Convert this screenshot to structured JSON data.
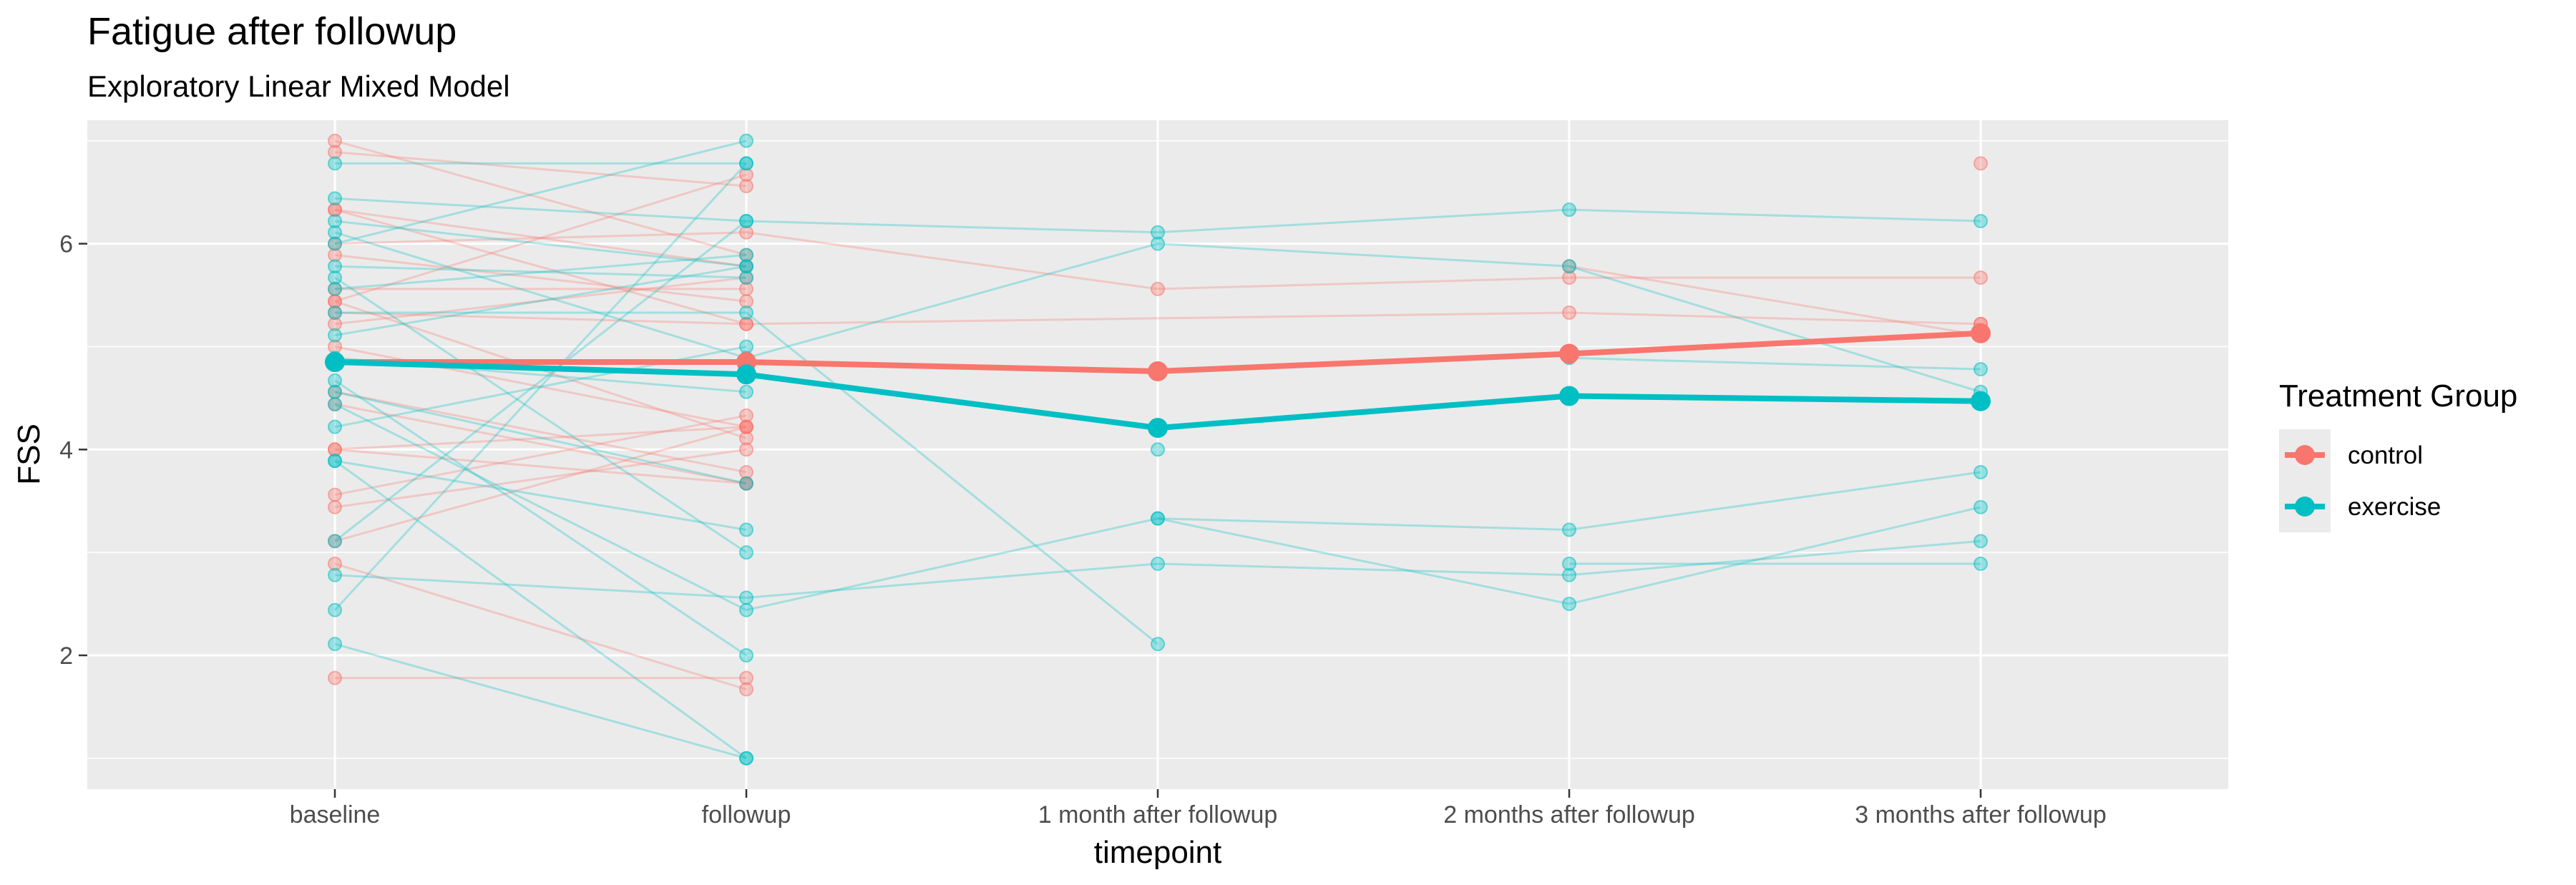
{
  "chart_data": {
    "type": "line",
    "title": "Fatigue after followup",
    "subtitle": "Exploratory Linear Mixed Model",
    "xlabel": "timepoint",
    "ylabel": "FSS",
    "categories": [
      "baseline",
      "followup",
      "1 month after followup",
      "2 months after followup",
      "3 months after followup"
    ],
    "ylim": [
      0.7,
      7.2
    ],
    "yticks": [
      2,
      4,
      6
    ],
    "grid": true,
    "legend": {
      "title": "Treatment Group",
      "position": "right",
      "entries": [
        "control",
        "exercise"
      ]
    },
    "colors": {
      "control": "#F8766D",
      "exercise": "#00BFC4"
    },
    "series": [
      {
        "name": "control",
        "values": [
          4.85,
          4.85,
          4.76,
          4.93,
          5.13
        ]
      },
      {
        "name": "exercise",
        "values": [
          4.85,
          4.73,
          4.21,
          4.52,
          4.47
        ]
      }
    ],
    "individual_trajectories": [
      {
        "group": "control",
        "values": [
          6.89,
          6.56,
          null,
          null,
          null
        ]
      },
      {
        "group": "control",
        "values": [
          6.33,
          5.78,
          null,
          null,
          null
        ]
      },
      {
        "group": "control",
        "values": [
          6.0,
          6.11,
          5.56,
          5.67,
          5.67
        ]
      },
      {
        "group": "control",
        "values": [
          5.89,
          5.44,
          null,
          null,
          null
        ]
      },
      {
        "group": "control",
        "values": [
          5.56,
          5.56,
          null,
          null,
          null
        ]
      },
      {
        "group": "control",
        "values": [
          5.44,
          6.67,
          null,
          null,
          null
        ]
      },
      {
        "group": "control",
        "values": [
          5.33,
          5.22,
          null,
          5.33,
          5.22
        ]
      },
      {
        "group": "control",
        "values": [
          5.22,
          5.67,
          null,
          null,
          null
        ]
      },
      {
        "group": "control",
        "values": [
          5.0,
          4.22,
          null,
          null,
          null
        ]
      },
      {
        "group": "control",
        "values": [
          4.56,
          3.78,
          null,
          null,
          null
        ]
      },
      {
        "group": "control",
        "values": [
          4.0,
          4.22,
          null,
          null,
          null
        ]
      },
      {
        "group": "control",
        "values": [
          4.0,
          3.67,
          null,
          null,
          null
        ]
      },
      {
        "group": "control",
        "values": [
          3.56,
          4.33,
          null,
          null,
          null
        ]
      },
      {
        "group": "control",
        "values": [
          3.44,
          4.0,
          null,
          null,
          null
        ]
      },
      {
        "group": "control",
        "values": [
          3.11,
          4.22,
          null,
          null,
          null
        ]
      },
      {
        "group": "control",
        "values": [
          2.89,
          1.67,
          null,
          null,
          null
        ]
      },
      {
        "group": "control",
        "values": [
          1.78,
          1.78,
          null,
          null,
          null
        ]
      },
      {
        "group": "control",
        "values": [
          null,
          null,
          null,
          null,
          6.78
        ]
      },
      {
        "group": "control",
        "values": [
          null,
          null,
          null,
          null,
          5.22
        ]
      },
      {
        "group": "control",
        "values": [
          null,
          null,
          null,
          5.78,
          5.11
        ]
      },
      {
        "group": "control",
        "values": [
          7.0,
          5.89,
          null,
          null,
          null
        ]
      },
      {
        "group": "control",
        "values": [
          6.33,
          5.22,
          null,
          null,
          null
        ]
      },
      {
        "group": "control",
        "values": [
          5.44,
          4.11,
          null,
          null,
          null
        ]
      },
      {
        "group": "control",
        "values": [
          4.44,
          3.67,
          null,
          null,
          null
        ]
      },
      {
        "group": "exercise",
        "values": [
          6.78,
          6.78,
          null,
          null,
          null
        ]
      },
      {
        "group": "exercise",
        "values": [
          6.44,
          6.22,
          6.11,
          6.33,
          6.22
        ]
      },
      {
        "group": "exercise",
        "values": [
          6.22,
          5.78,
          null,
          null,
          null
        ]
      },
      {
        "group": "exercise",
        "values": [
          6.11,
          4.89,
          6.0,
          5.78,
          4.56
        ]
      },
      {
        "group": "exercise",
        "values": [
          5.78,
          5.67,
          null,
          null,
          null
        ]
      },
      {
        "group": "exercise",
        "values": [
          5.67,
          3.0,
          null,
          null,
          null
        ]
      },
      {
        "group": "exercise",
        "values": [
          5.33,
          5.33,
          2.11,
          null,
          null
        ]
      },
      {
        "group": "exercise",
        "values": [
          5.11,
          5.78,
          null,
          null,
          null
        ]
      },
      {
        "group": "exercise",
        "values": [
          4.89,
          4.56,
          null,
          null,
          null
        ]
      },
      {
        "group": "exercise",
        "values": [
          4.67,
          2.0,
          null,
          null,
          null
        ]
      },
      {
        "group": "exercise",
        "values": [
          4.44,
          2.44,
          3.33,
          3.22,
          3.78
        ]
      },
      {
        "group": "exercise",
        "values": [
          4.22,
          5.0,
          null,
          null,
          null
        ]
      },
      {
        "group": "exercise",
        "values": [
          3.89,
          3.22,
          null,
          null,
          null
        ]
      },
      {
        "group": "exercise",
        "values": [
          3.89,
          1.0,
          null,
          null,
          null
        ]
      },
      {
        "group": "exercise",
        "values": [
          3.11,
          6.22,
          null,
          null,
          null
        ]
      },
      {
        "group": "exercise",
        "values": [
          2.78,
          2.56,
          2.89,
          2.78,
          3.11
        ]
      },
      {
        "group": "exercise",
        "values": [
          2.44,
          6.78,
          null,
          null,
          null
        ]
      },
      {
        "group": "exercise",
        "values": [
          2.11,
          1.0,
          null,
          null,
          null
        ]
      },
      {
        "group": "exercise",
        "values": [
          null,
          null,
          4.0,
          null,
          null
        ]
      },
      {
        "group": "exercise",
        "values": [
          null,
          null,
          3.33,
          2.5,
          3.44
        ]
      },
      {
        "group": "exercise",
        "values": [
          null,
          null,
          null,
          2.89,
          2.89
        ]
      },
      {
        "group": "exercise",
        "values": [
          null,
          null,
          null,
          4.89,
          4.78
        ]
      },
      {
        "group": "exercise",
        "values": [
          6.0,
          7.0,
          null,
          null,
          null
        ]
      },
      {
        "group": "exercise",
        "values": [
          5.56,
          5.89,
          null,
          null,
          null
        ]
      },
      {
        "group": "exercise",
        "values": [
          4.56,
          3.67,
          null,
          null,
          null
        ]
      }
    ]
  }
}
